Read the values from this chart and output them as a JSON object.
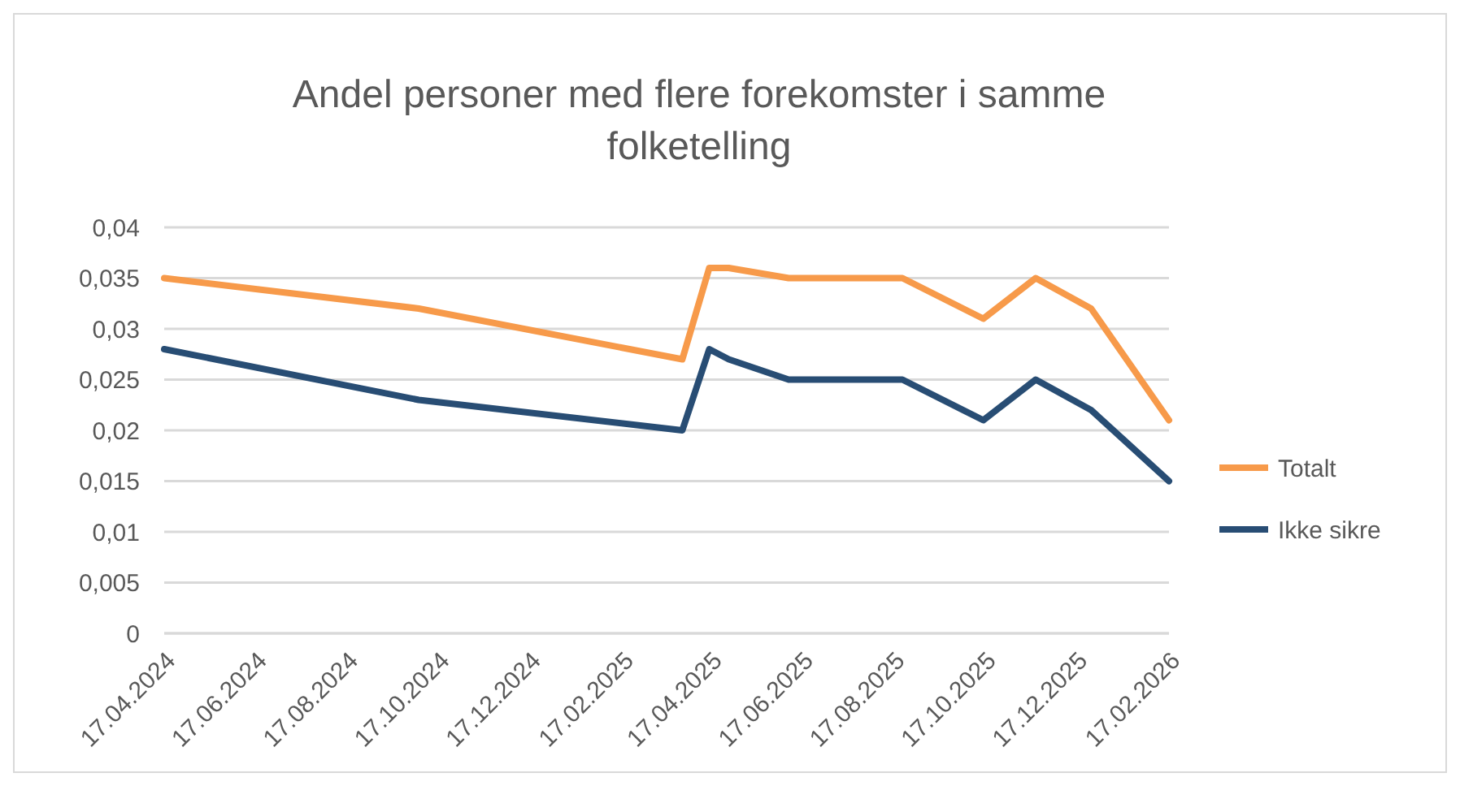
{
  "chart_data": {
    "type": "line",
    "title": "Andel personer med flere forekomster i samme folketelling",
    "x": [
      "2024-04-17",
      "2024-10-04",
      "2025-03-29",
      "2025-04-16",
      "2025-04-29",
      "2025-06-08",
      "2025-08-23",
      "2025-10-16",
      "2025-11-20",
      "2025-12-27",
      "2026-02-17"
    ],
    "series": [
      {
        "name": "Totalt",
        "color": "#f79a4a",
        "values": [
          0.035,
          0.032,
          0.027,
          0.036,
          0.036,
          0.035,
          0.035,
          0.031,
          0.035,
          0.032,
          0.021
        ]
      },
      {
        "name": "Ikke sikre",
        "color": "#284d74",
        "values": [
          0.028,
          0.023,
          0.02,
          0.028,
          0.027,
          0.025,
          0.025,
          0.021,
          0.025,
          0.022,
          0.015
        ]
      }
    ],
    "xlim": [
      "2024-04-17",
      "2026-02-17"
    ],
    "xticks": [
      {
        "value": "2024-04-17",
        "label": "17.04.2024"
      },
      {
        "value": "2024-06-17",
        "label": "17.06.2024"
      },
      {
        "value": "2024-08-17",
        "label": "17.08.2024"
      },
      {
        "value": "2024-10-17",
        "label": "17.10.2024"
      },
      {
        "value": "2024-12-17",
        "label": "17.12.2024"
      },
      {
        "value": "2025-02-17",
        "label": "17.02.2025"
      },
      {
        "value": "2025-04-17",
        "label": "17.04.2025"
      },
      {
        "value": "2025-06-17",
        "label": "17.06.2025"
      },
      {
        "value": "2025-08-17",
        "label": "17.08.2025"
      },
      {
        "value": "2025-10-17",
        "label": "17.10.2025"
      },
      {
        "value": "2025-12-17",
        "label": "17.12.2025"
      },
      {
        "value": "2026-02-17",
        "label": "17.02.2026"
      }
    ],
    "ylim": [
      0,
      0.04
    ],
    "yticks": [
      {
        "value": 0,
        "label": "0"
      },
      {
        "value": 0.005,
        "label": "0,005"
      },
      {
        "value": 0.01,
        "label": "0,01"
      },
      {
        "value": 0.015,
        "label": "0,015"
      },
      {
        "value": 0.02,
        "label": "0,02"
      },
      {
        "value": 0.025,
        "label": "0,025"
      },
      {
        "value": 0.03,
        "label": "0,03"
      },
      {
        "value": 0.035,
        "label": "0,035"
      },
      {
        "value": 0.04,
        "label": "0,04"
      }
    ],
    "grid": "y",
    "legend": "right",
    "marker": "none",
    "line_style": "solid"
  }
}
